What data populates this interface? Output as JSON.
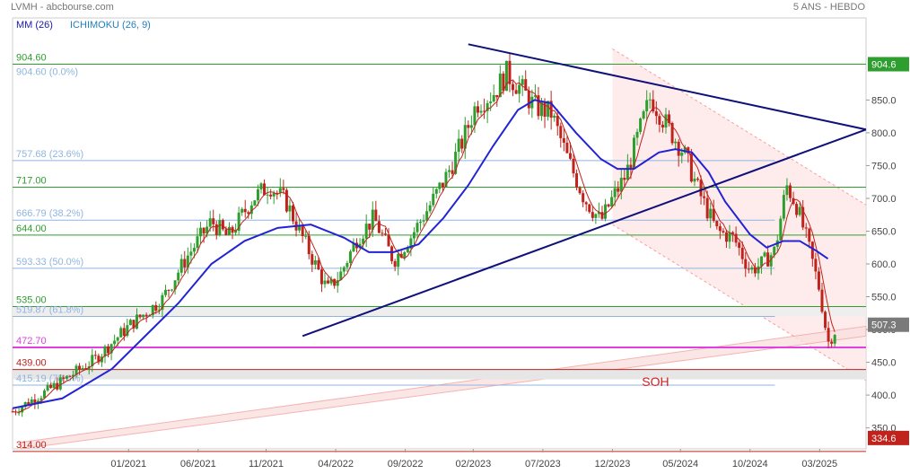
{
  "header": {
    "title": "LVMH - abcbourse.com",
    "period": "5 ANS - HEBDO"
  },
  "legend": {
    "ma": "MM (26)",
    "ichimoku": "ICHIMOKU (26, 9)",
    "ma_color": "#1a1aa6",
    "ichimoku_color": "#1f7fbf"
  },
  "colors": {
    "up": "#2e9e2e",
    "down": "#c0231c",
    "ma": "#2323d6",
    "tenkan": "#c0231c",
    "trendline": "#10107a",
    "level_green": "#2e9e2e",
    "fib": "#8fb5e0",
    "magenta": "#e040e0",
    "channel": "#ff9a9a",
    "soh": "#d42020"
  },
  "chart_data": {
    "type": "candlestick",
    "y_axis": {
      "min": 318,
      "max": 945,
      "ticks": [
        350.0,
        400.0,
        450.0,
        500.0,
        550.0,
        600.0,
        650.0,
        700.0,
        750.0,
        800.0,
        850.0
      ],
      "tick_labels": [
        "350.0",
        "400.0",
        "450.0",
        "500.0",
        "550.0",
        "600.0",
        "650.0",
        "700.0",
        "750.0",
        "800.0",
        "850.0"
      ]
    },
    "x_axis": {
      "ticks": [
        {
          "label": "01/2021",
          "t": 2021.0
        },
        {
          "label": "06/2021",
          "t": 2021.42
        },
        {
          "label": "11/2021",
          "t": 2021.83
        },
        {
          "label": "04/2022",
          "t": 2022.25
        },
        {
          "label": "09/2022",
          "t": 2022.67
        },
        {
          "label": "02/2023",
          "t": 2023.08
        },
        {
          "label": "07/2023",
          "t": 2023.5
        },
        {
          "label": "12/2023",
          "t": 2023.92
        },
        {
          "label": "05/2024",
          "t": 2024.33
        },
        {
          "label": "10/2024",
          "t": 2024.75
        },
        {
          "label": "03/2025",
          "t": 2025.17
        }
      ],
      "t_start": 2020.3,
      "t_end": 2025.45
    },
    "price_path": [
      [
        2020.3,
        375
      ],
      [
        2020.5,
        405
      ],
      [
        2020.8,
        455
      ],
      [
        2021.0,
        505
      ],
      [
        2021.2,
        545
      ],
      [
        2021.35,
        610
      ],
      [
        2021.5,
        665
      ],
      [
        2021.6,
        640
      ],
      [
        2021.75,
        700
      ],
      [
        2021.85,
        720
      ],
      [
        2021.95,
        695
      ],
      [
        2022.05,
        640
      ],
      [
        2022.2,
        560
      ],
      [
        2022.28,
        585
      ],
      [
        2022.38,
        640
      ],
      [
        2022.48,
        670
      ],
      [
        2022.6,
        605
      ],
      [
        2022.7,
        640
      ],
      [
        2022.82,
        690
      ],
      [
        2022.92,
        735
      ],
      [
        2023.02,
        790
      ],
      [
        2023.1,
        845
      ],
      [
        2023.2,
        860
      ],
      [
        2023.28,
        890
      ],
      [
        2023.36,
        870
      ],
      [
        2023.45,
        840
      ],
      [
        2023.55,
        830
      ],
      [
        2023.65,
        760
      ],
      [
        2023.75,
        700
      ],
      [
        2023.85,
        665
      ],
      [
        2023.92,
        700
      ],
      [
        2024.0,
        735
      ],
      [
        2024.08,
        800
      ],
      [
        2024.15,
        855
      ],
      [
        2024.25,
        810
      ],
      [
        2024.35,
        770
      ],
      [
        2024.45,
        705
      ],
      [
        2024.55,
        650
      ],
      [
        2024.65,
        640
      ],
      [
        2024.75,
        590
      ],
      [
        2024.82,
        600
      ],
      [
        2024.9,
        620
      ],
      [
        2024.97,
        720
      ],
      [
        2025.03,
        690
      ],
      [
        2025.1,
        630
      ],
      [
        2025.17,
        560
      ],
      [
        2025.22,
        480
      ],
      [
        2025.28,
        505
      ]
    ],
    "moving_average_26": [
      [
        2020.3,
        380
      ],
      [
        2020.6,
        395
      ],
      [
        2020.9,
        440
      ],
      [
        2021.1,
        490
      ],
      [
        2021.3,
        540
      ],
      [
        2021.5,
        600
      ],
      [
        2021.7,
        635
      ],
      [
        2021.9,
        655
      ],
      [
        2022.1,
        660
      ],
      [
        2022.3,
        640
      ],
      [
        2022.45,
        618
      ],
      [
        2022.6,
        618
      ],
      [
        2022.75,
        630
      ],
      [
        2022.9,
        670
      ],
      [
        2023.05,
        720
      ],
      [
        2023.2,
        780
      ],
      [
        2023.35,
        835
      ],
      [
        2023.45,
        850
      ],
      [
        2023.55,
        845
      ],
      [
        2023.7,
        800
      ],
      [
        2023.85,
        760
      ],
      [
        2023.95,
        745
      ],
      [
        2024.05,
        745
      ],
      [
        2024.2,
        770
      ],
      [
        2024.3,
        775
      ],
      [
        2024.4,
        770
      ],
      [
        2024.5,
        740
      ],
      [
        2024.6,
        695
      ],
      [
        2024.75,
        645
      ],
      [
        2024.85,
        625
      ],
      [
        2024.95,
        635
      ],
      [
        2025.05,
        635
      ],
      [
        2025.15,
        620
      ],
      [
        2025.22,
        608
      ]
    ],
    "levels": [
      {
        "value": 904.6,
        "label": "904.60",
        "fib": "904.60 (0.0%)",
        "kind": "green"
      },
      {
        "value": 757.68,
        "label": "757.68 (23.6%)",
        "kind": "fib"
      },
      {
        "value": 717.0,
        "label": "717.00",
        "kind": "green"
      },
      {
        "value": 666.79,
        "label": "666.79 (38.2%)",
        "kind": "fib"
      },
      {
        "value": 644.0,
        "label": "644.00",
        "kind": "green"
      },
      {
        "value": 593.33,
        "label": "593.33 (50.0%)",
        "kind": "fib"
      },
      {
        "value": 535.0,
        "label": "535.00",
        "kind": "green"
      },
      {
        "value": 519.87,
        "label": "519.87 (61.8%)",
        "kind": "fib"
      },
      {
        "value": 472.7,
        "label": "472.70",
        "kind": "magenta"
      },
      {
        "value": 439.0,
        "label": "439.00",
        "kind": "red"
      },
      {
        "value": 415.19,
        "label": "415.19 (78.6%)",
        "kind": "fib"
      },
      {
        "value": 314.0,
        "label": "314.00",
        "kind": "red"
      }
    ],
    "price_tags": [
      {
        "value": 904.6,
        "label": "904.6",
        "color": "#2e9e2e"
      },
      {
        "value": 507.3,
        "label": "507.3",
        "color": "#7a7a7a"
      },
      {
        "value": 334.6,
        "label": "334.6",
        "color": "#c0231c"
      }
    ],
    "trendlines": [
      {
        "from": [
          2023.05,
          935
        ],
        "to": [
          2025.45,
          805
        ]
      },
      {
        "from": [
          2022.05,
          490
        ],
        "to": [
          2025.45,
          805
        ]
      }
    ],
    "annotation": {
      "text": "SOH",
      "t": 2024.18,
      "y": 414
    }
  }
}
